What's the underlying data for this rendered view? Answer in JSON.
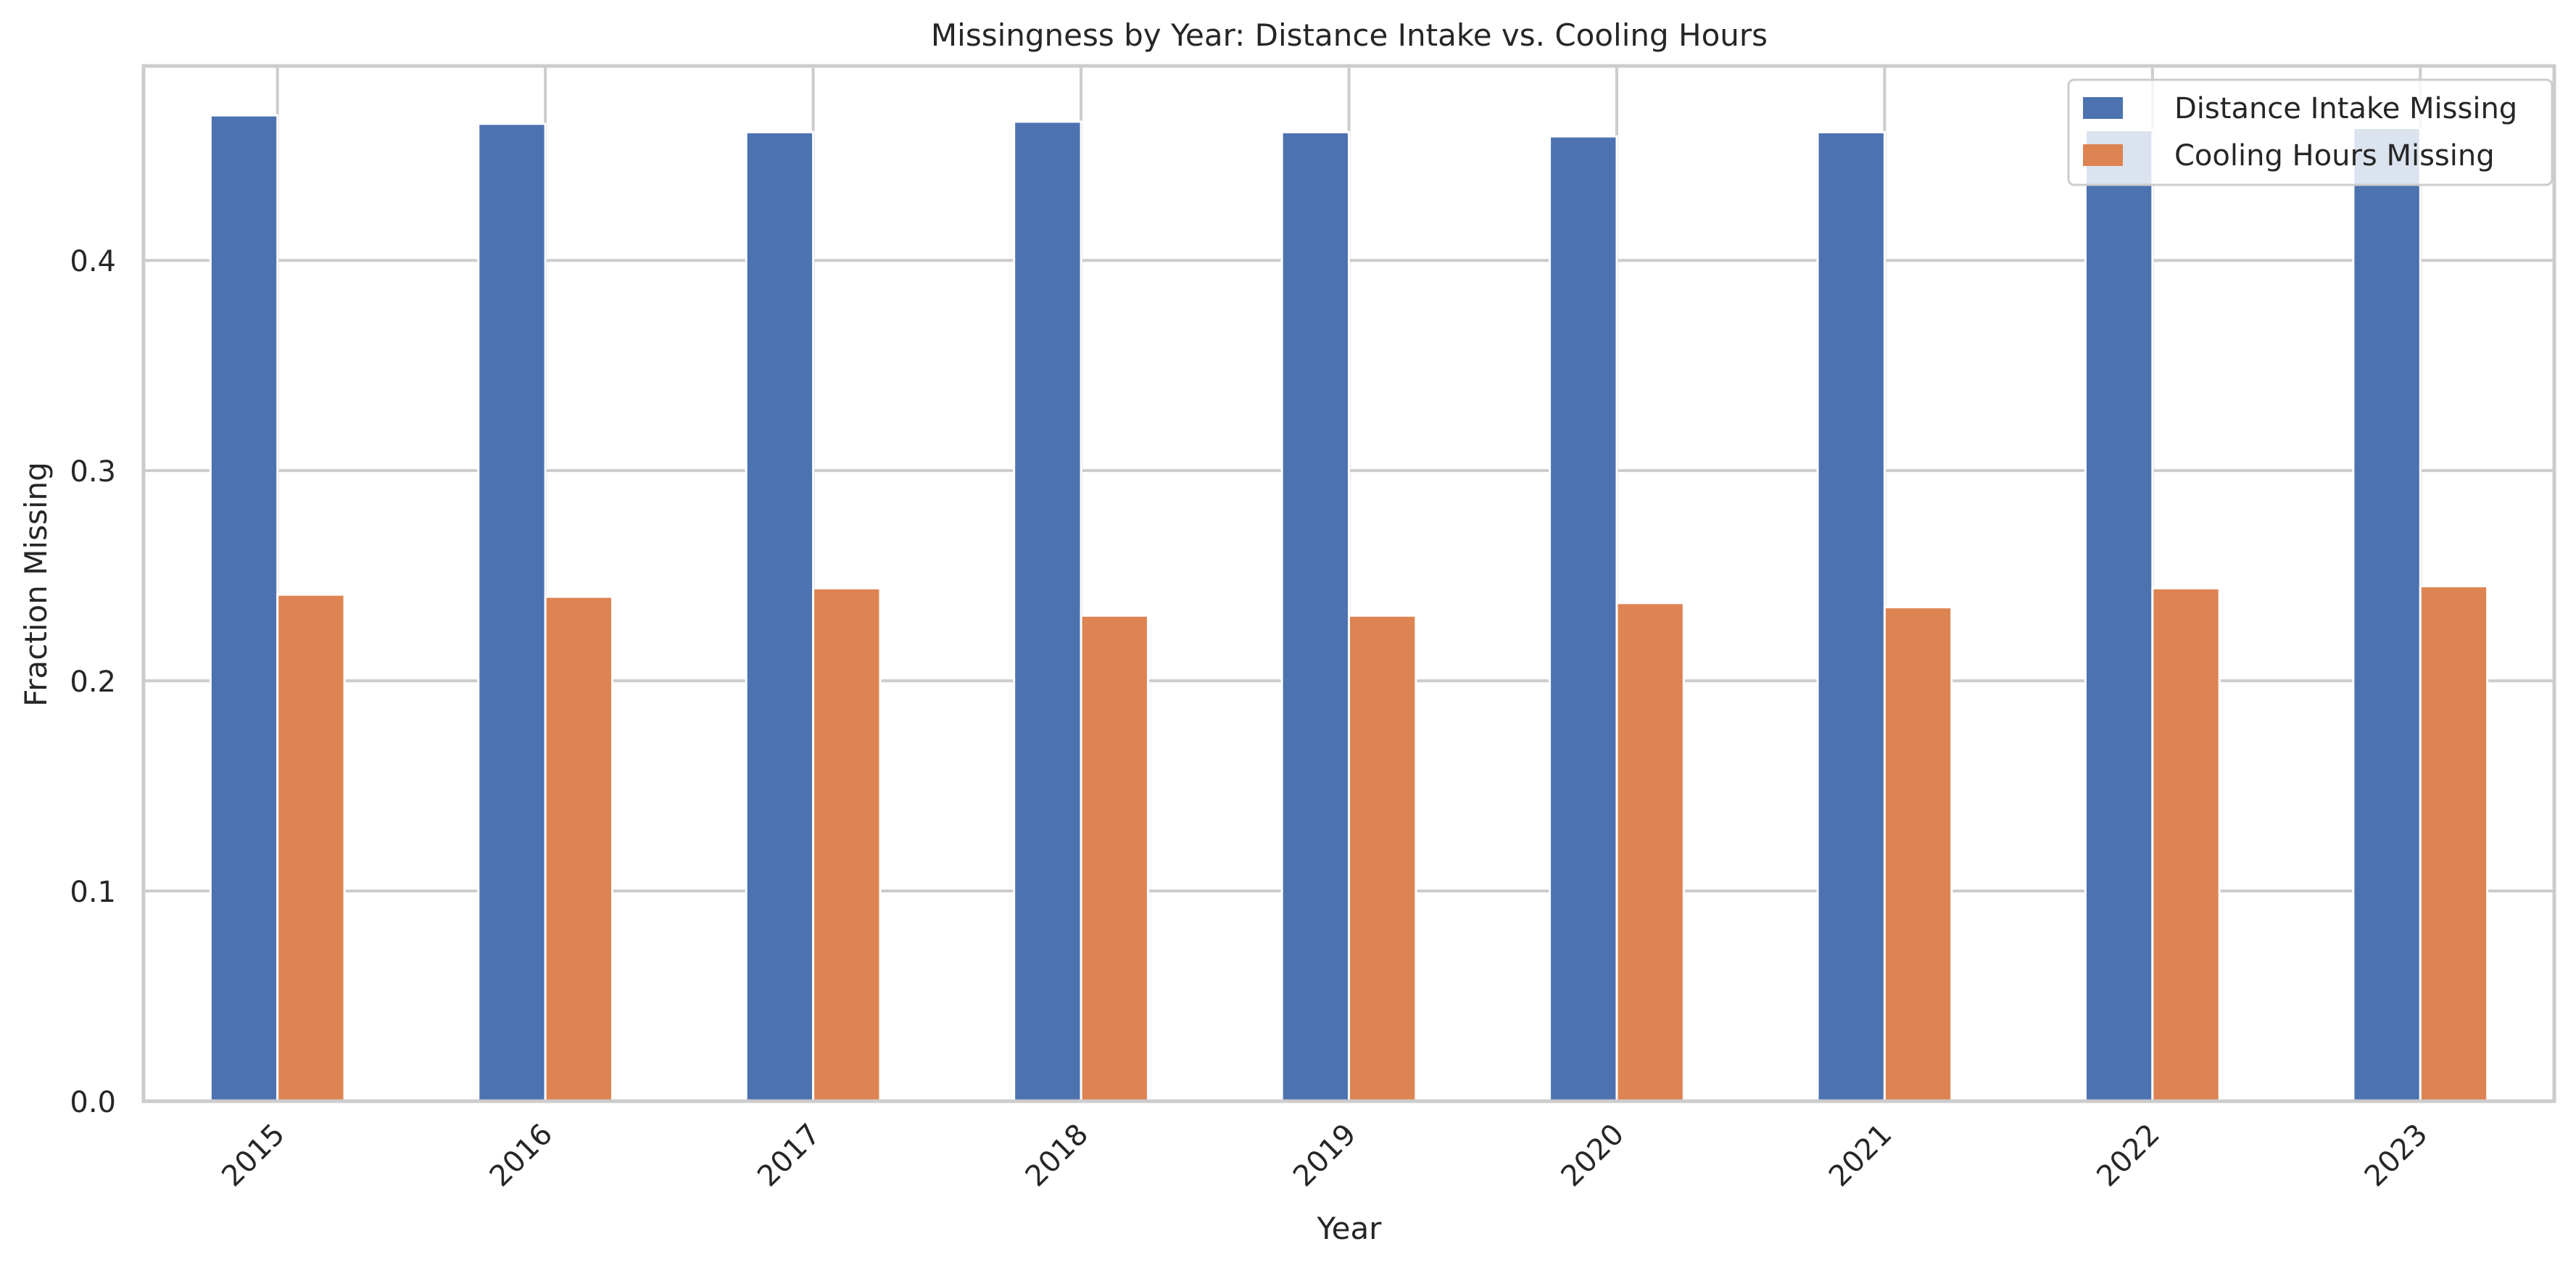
{
  "chart_data": {
    "type": "bar",
    "title": "Missingness by Year: Distance Intake vs. Cooling Hours",
    "xlabel": "Year",
    "ylabel": "Fraction Missing",
    "categories": [
      "2015",
      "2016",
      "2017",
      "2018",
      "2019",
      "2020",
      "2021",
      "2022",
      "2023"
    ],
    "series": [
      {
        "name": "Distance Intake Missing",
        "color": "#4c72b0",
        "values": [
          0.469,
          0.465,
          0.461,
          0.466,
          0.461,
          0.459,
          0.461,
          0.462,
          0.463
        ]
      },
      {
        "name": "Cooling Hours Missing",
        "color": "#dd8452",
        "values": [
          0.241,
          0.24,
          0.244,
          0.231,
          0.231,
          0.237,
          0.235,
          0.244,
          0.245
        ]
      }
    ],
    "ylim": [
      0,
      0.4925
    ],
    "yticks": [
      "0.0",
      "0.1",
      "0.2",
      "0.3",
      "0.4"
    ],
    "grid": true,
    "legend_position": "top-right",
    "xtick_rotation": 45
  }
}
